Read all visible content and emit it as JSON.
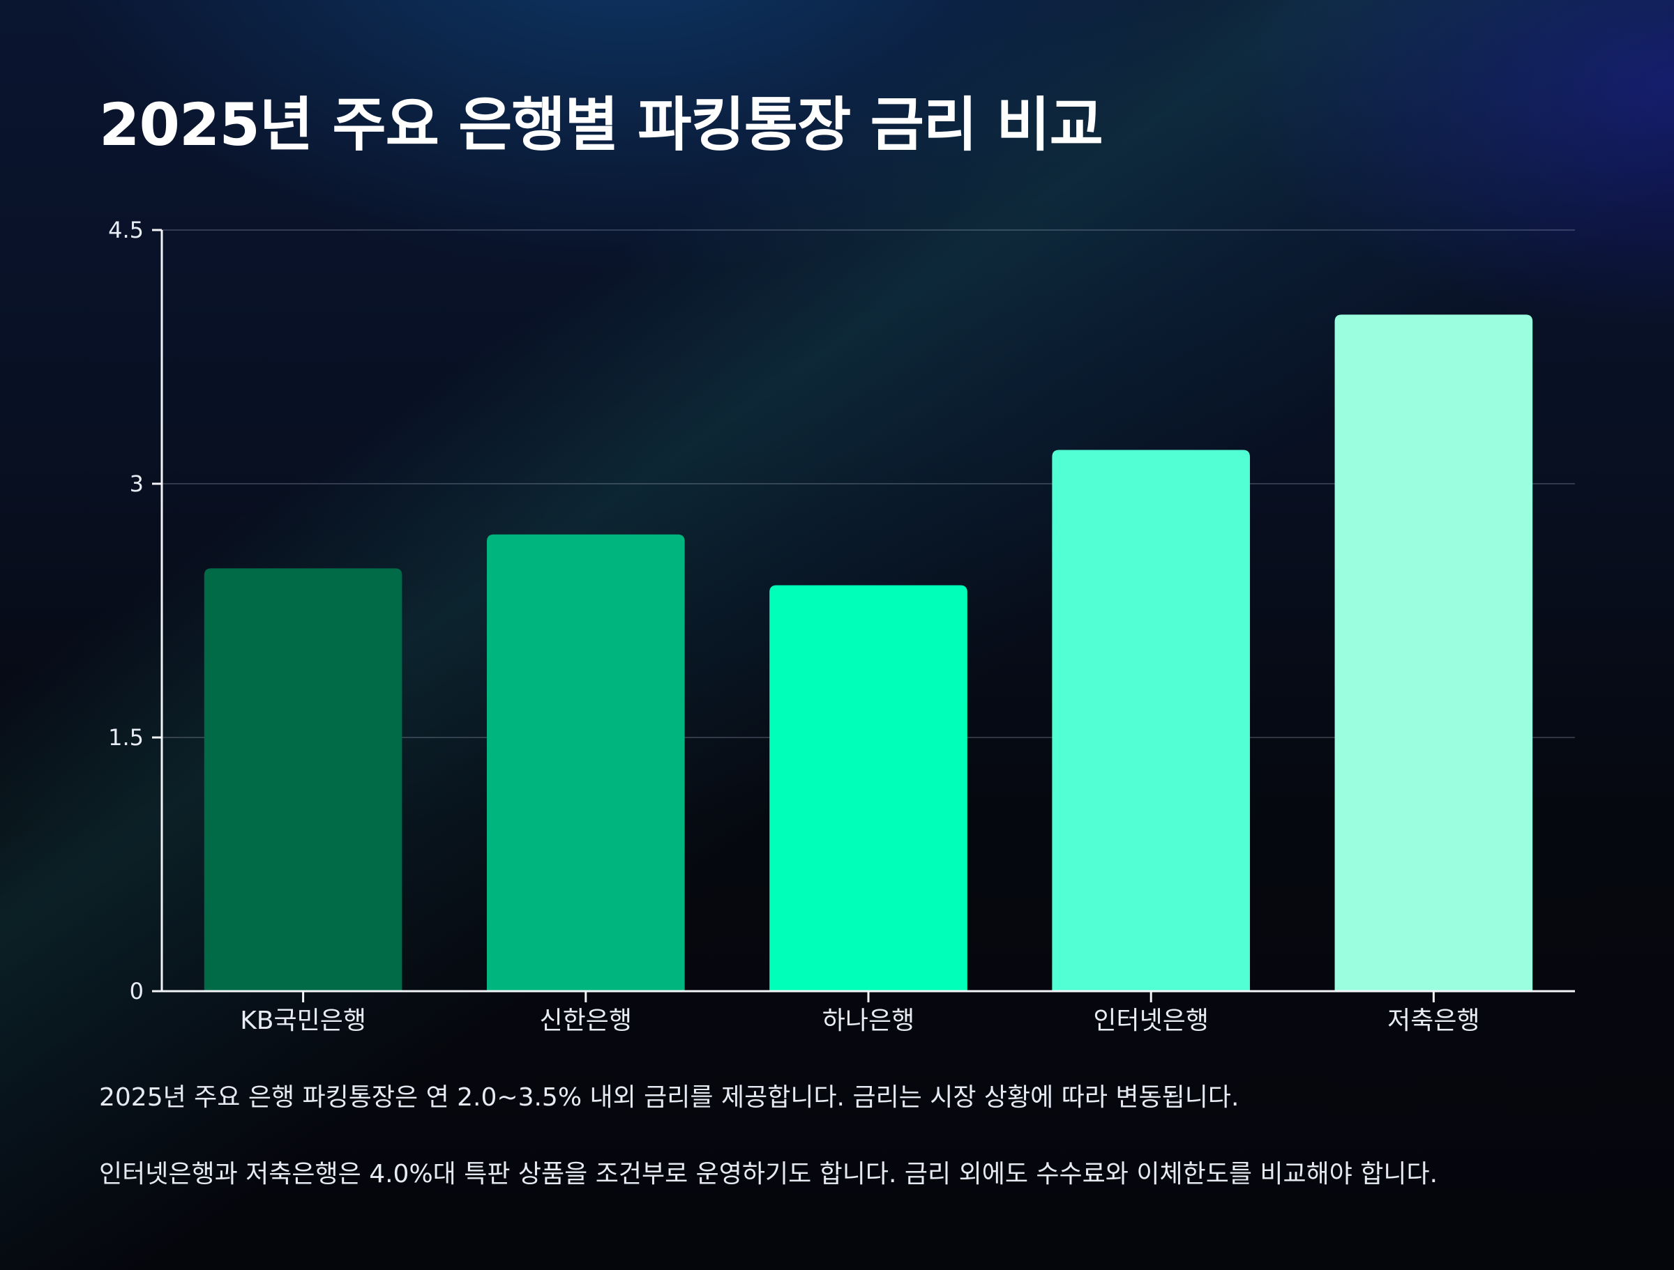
{
  "title": "2025년 주요 은행별 파킹통장 금리 비교",
  "notes": [
    "2025년 주요 은행 파킹통장은 연 2.0~3.5% 내외 금리를 제공합니다. 금리는 시장 상황에 따라 변동됩니다.",
    "인터넷은행과 저축은행은 4.0%대 특판 상품을 조건부로 운영하기도 합니다. 금리 외에도 수수료와 이체한도를 비교해야 합니다."
  ],
  "chart_data": {
    "type": "bar",
    "title": "2025년 주요 은행별 파킹통장 금리 비교",
    "xlabel": "",
    "ylabel": "",
    "categories": [
      "KB국민은행",
      "신한은행",
      "하나은행",
      "인터넷은행",
      "저축은행"
    ],
    "values": [
      2.5,
      2.7,
      2.4,
      3.2,
      4.0
    ],
    "colors": [
      "#016b48",
      "#01b57e",
      "#00ffb9",
      "#52ffd5",
      "#9bffdf"
    ],
    "ylim": [
      0,
      4.5
    ],
    "yticks": [
      0,
      1.5,
      3,
      4.5
    ],
    "ytick_labels": [
      "0",
      "1.5",
      "3",
      "4.5"
    ],
    "grid": true,
    "legend": "none"
  }
}
